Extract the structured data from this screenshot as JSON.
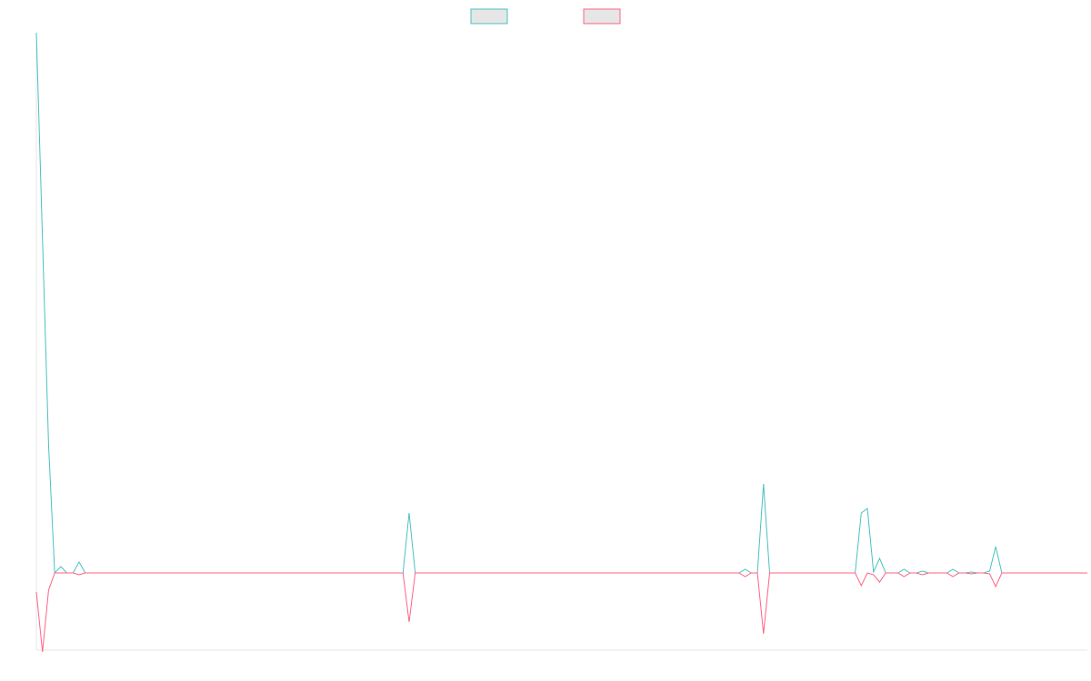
{
  "chart_data": {
    "type": "line",
    "ylim": [
      -88,
      595
    ],
    "legend": "top",
    "series": [
      {
        "color": "#4bc0c0",
        "values": [
          595,
          368,
          141,
          0,
          7,
          0,
          0,
          12,
          0,
          0,
          0,
          0,
          0,
          0,
          0,
          0,
          0,
          0,
          0,
          0,
          0,
          0,
          0,
          0,
          0,
          0,
          0,
          0,
          0,
          0,
          0,
          0,
          0,
          0,
          0,
          0,
          0,
          0,
          0,
          0,
          0,
          0,
          0,
          0,
          0,
          0,
          0,
          0,
          0,
          0,
          0,
          0,
          0,
          0,
          0,
          0,
          0,
          0,
          0,
          0,
          0,
          66,
          0,
          0,
          0,
          0,
          0,
          0,
          0,
          0,
          0,
          0,
          0,
          0,
          0,
          0,
          0,
          0,
          0,
          0,
          0,
          0,
          0,
          0,
          0,
          0,
          0,
          0,
          0,
          0,
          0,
          0,
          0,
          0,
          0,
          0,
          0,
          0,
          0,
          0,
          0,
          0,
          0,
          0,
          0,
          0,
          0,
          0,
          0,
          0,
          0,
          0,
          0,
          0,
          0,
          0,
          4,
          0,
          0,
          98,
          0,
          0,
          0,
          0,
          0,
          0,
          0,
          0,
          0,
          0,
          0,
          0,
          0,
          0,
          0,
          66,
          71,
          1,
          16,
          0,
          0,
          0,
          4,
          0,
          0,
          2,
          0,
          0,
          0,
          0,
          4,
          0,
          0,
          1,
          0,
          0,
          2,
          29,
          0,
          0,
          0,
          0,
          0,
          0,
          0,
          0,
          0,
          0,
          0,
          0,
          0,
          0,
          0
        ]
      },
      {
        "color": "#ff6384",
        "values": [
          -21,
          -87,
          -19,
          0,
          0,
          0,
          0,
          -2,
          0,
          0,
          0,
          0,
          0,
          0,
          0,
          0,
          0,
          0,
          0,
          0,
          0,
          0,
          0,
          0,
          0,
          0,
          0,
          0,
          0,
          0,
          0,
          0,
          0,
          0,
          0,
          0,
          0,
          0,
          0,
          0,
          0,
          0,
          0,
          0,
          0,
          0,
          0,
          0,
          0,
          0,
          0,
          0,
          0,
          0,
          0,
          0,
          0,
          0,
          0,
          0,
          0,
          -54,
          0,
          0,
          0,
          0,
          0,
          0,
          0,
          0,
          0,
          0,
          0,
          0,
          0,
          0,
          0,
          0,
          0,
          0,
          0,
          0,
          0,
          0,
          0,
          0,
          0,
          0,
          0,
          0,
          0,
          0,
          0,
          0,
          0,
          0,
          0,
          0,
          0,
          0,
          0,
          0,
          0,
          0,
          0,
          0,
          0,
          0,
          0,
          0,
          0,
          0,
          0,
          0,
          0,
          0,
          -4,
          0,
          0,
          -67,
          0,
          0,
          0,
          0,
          0,
          0,
          0,
          0,
          0,
          0,
          0,
          0,
          0,
          0,
          0,
          -14,
          0,
          -2,
          -10,
          0,
          0,
          0,
          -4,
          0,
          0,
          -2,
          0,
          0,
          0,
          0,
          -4,
          0,
          0,
          -1,
          0,
          0,
          -1,
          -15,
          0,
          0,
          0,
          0,
          0,
          0,
          0,
          0,
          0,
          0,
          0,
          0,
          0,
          0,
          0
        ]
      }
    ]
  }
}
